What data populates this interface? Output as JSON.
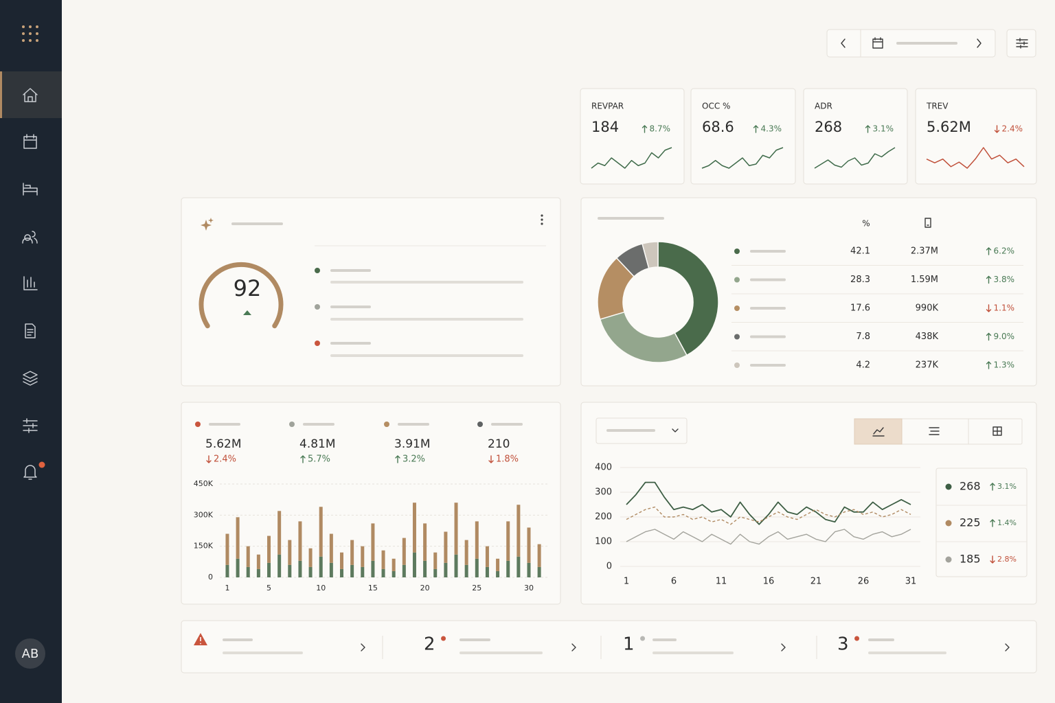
{
  "sidebar": {
    "avatar": "AB"
  },
  "kpis": [
    {
      "label": "REVPAR",
      "value": 184,
      "change": "8.7%",
      "dir": "up",
      "color": "#3f6b4a",
      "spark": [
        3,
        4,
        3.5,
        5,
        4,
        3,
        4.5,
        3.5,
        4,
        6,
        5,
        6.5,
        7
      ]
    },
    {
      "label": "OCC %",
      "value": 68.6,
      "change": "4.3%",
      "dir": "up",
      "color": "#3f6b4a",
      "spark": [
        3,
        3.5,
        4.5,
        3.5,
        3,
        4,
        5,
        3.5,
        3.8,
        5.5,
        5,
        6.5,
        7
      ]
    },
    {
      "label": "ADR",
      "value": 268,
      "change": "3.1%",
      "dir": "up",
      "color": "#3f6b4a",
      "spark": [
        3,
        3.8,
        4.6,
        3.6,
        3.2,
        4.4,
        5,
        3.6,
        4,
        5.8,
        5.2,
        6.2,
        7
      ]
    },
    {
      "label": "TREV",
      "value": "5.62M",
      "change": "2.4%",
      "dir": "down",
      "color": "#c0503a",
      "spark": [
        5,
        4.5,
        5,
        4,
        4.6,
        3.8,
        5,
        6.5,
        5,
        5.5,
        4.5,
        5,
        4
      ]
    }
  ],
  "gauge": {
    "value": 92
  },
  "segments": {
    "header": "%",
    "rows": [
      {
        "pct": 42.1,
        "revenue": "2.37M",
        "change": "6.2%",
        "dir": "up",
        "color": "#4a6b4b"
      },
      {
        "pct": 28.3,
        "revenue": "1.59M",
        "change": "3.8%",
        "dir": "up",
        "color": "#93a68d"
      },
      {
        "pct": 17.6,
        "revenue": "990K",
        "change": "1.1%",
        "dir": "down",
        "color": "#b58e63"
      },
      {
        "pct": 7.8,
        "revenue": "438K",
        "change": "9.0%",
        "dir": "up",
        "color": "#6b6d6c"
      },
      {
        "pct": 4.2,
        "revenue": "237K",
        "change": "1.3%",
        "dir": "up",
        "color": "#cdc6bc"
      }
    ]
  },
  "bar_chart": {
    "type": "bar",
    "stacked": true,
    "metrics": [
      {
        "value": "5.62M",
        "change": "2.4%",
        "dir": "down",
        "color": "#c9553d"
      },
      {
        "value": "4.81M",
        "change": "5.7%",
        "dir": "up",
        "color": "#a0a39b"
      },
      {
        "value": "3.91M",
        "change": "3.2%",
        "dir": "up",
        "color": "#b58e63"
      },
      {
        "value": 210,
        "change": "1.8%",
        "dir": "down",
        "color": "#5f6263"
      }
    ],
    "x": [
      1,
      2,
      3,
      4,
      5,
      6,
      7,
      8,
      9,
      10,
      11,
      12,
      13,
      14,
      15,
      16,
      17,
      18,
      19,
      20,
      21,
      22,
      23,
      24,
      25,
      26,
      27,
      28,
      29,
      30,
      31
    ],
    "xlim": [
      0.5,
      31.5
    ],
    "xticks": [
      1,
      5,
      10,
      15,
      20,
      25,
      30
    ],
    "ylim": [
      0,
      450000
    ],
    "yticks": [
      0,
      {
        "value": 150000,
        "label": "150K"
      },
      {
        "value": 300000,
        "label": "300K"
      },
      {
        "value": 450000,
        "label": "450K"
      }
    ],
    "series": [
      {
        "color": "#5d7a5e",
        "values": [
          60000,
          90000,
          50000,
          40000,
          70000,
          110000,
          60000,
          80000,
          50000,
          100000,
          70000,
          40000,
          60000,
          50000,
          80000,
          40000,
          30000,
          60000,
          120000,
          80000,
          40000,
          70000,
          110000,
          60000,
          90000,
          50000,
          30000,
          80000,
          100000,
          70000,
          50000
        ]
      },
      {
        "color": "#b08a62",
        "values": [
          150000,
          200000,
          100000,
          70000,
          130000,
          210000,
          120000,
          190000,
          90000,
          240000,
          140000,
          80000,
          120000,
          100000,
          180000,
          90000,
          60000,
          130000,
          240000,
          180000,
          80000,
          150000,
          250000,
          120000,
          180000,
          100000,
          60000,
          190000,
          250000,
          170000,
          110000
        ]
      }
    ]
  },
  "line_chart": {
    "type": "line",
    "x": [
      1,
      2,
      3,
      4,
      5,
      6,
      7,
      8,
      9,
      10,
      11,
      12,
      13,
      14,
      15,
      16,
      17,
      18,
      19,
      20,
      21,
      22,
      23,
      24,
      25,
      26,
      27,
      28,
      29,
      30,
      31
    ],
    "xlim": [
      1,
      31
    ],
    "xticks": [
      1,
      6,
      11,
      16,
      21,
      26,
      31
    ],
    "ylim": [
      0,
      400
    ],
    "yticks": [
      0,
      100,
      200,
      300,
      400
    ],
    "series": [
      {
        "color": "#3d5e44",
        "dashed": false,
        "legend_value": 268,
        "change": "3.1%",
        "dir": "up",
        "values": [
          250,
          290,
          340,
          340,
          280,
          230,
          240,
          230,
          250,
          220,
          230,
          200,
          260,
          210,
          170,
          210,
          260,
          220,
          210,
          240,
          220,
          190,
          180,
          240,
          220,
          220,
          260,
          230,
          250,
          270,
          250
        ]
      },
      {
        "color": "#b08a62",
        "dashed": true,
        "legend_value": 225,
        "change": "1.4%",
        "dir": "up",
        "values": [
          190,
          210,
          230,
          240,
          200,
          200,
          210,
          190,
          200,
          180,
          190,
          170,
          200,
          190,
          180,
          200,
          220,
          200,
          190,
          210,
          230,
          210,
          200,
          220,
          230,
          210,
          220,
          200,
          210,
          230,
          210
        ]
      },
      {
        "color": "#a3a39c",
        "dashed": false,
        "legend_value": 185,
        "change": "2.8%",
        "dir": "down",
        "values": [
          100,
          120,
          140,
          150,
          130,
          110,
          140,
          120,
          100,
          130,
          110,
          90,
          130,
          100,
          90,
          120,
          140,
          110,
          120,
          130,
          110,
          100,
          140,
          150,
          120,
          110,
          130,
          140,
          120,
          130,
          150
        ]
      }
    ]
  },
  "alerts": [
    {
      "count": 2,
      "color": "#c9553d"
    },
    {
      "count": 1,
      "color": "#b8b8b4"
    },
    {
      "count": 3,
      "color": "#c9553d"
    }
  ]
}
